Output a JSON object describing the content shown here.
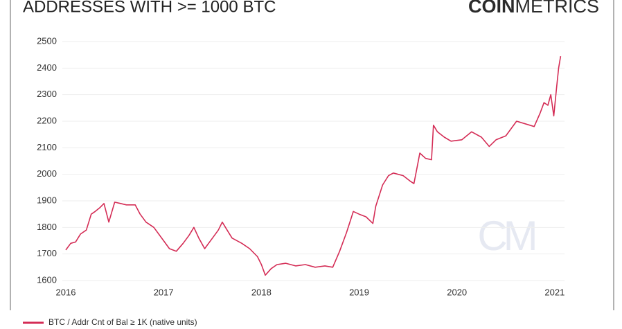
{
  "logo": {
    "bold": "COIN",
    "light": "METRICS"
  },
  "watermark": "CM",
  "chart_data": {
    "type": "line",
    "title": "ADDRESSES WITH >= 1000 BTC",
    "x": [
      2016.0,
      2016.05,
      2016.1,
      2016.15,
      2016.21,
      2016.26,
      2016.3,
      2016.35,
      2016.39,
      2016.44,
      2016.5,
      2016.56,
      2016.62,
      2016.71,
      2016.76,
      2016.82,
      2016.9,
      2017.0,
      2017.06,
      2017.13,
      2017.2,
      2017.26,
      2017.31,
      2017.36,
      2017.42,
      2017.5,
      2017.56,
      2017.6,
      2017.65,
      2017.7,
      2017.8,
      2017.88,
      2017.96,
      2018.0,
      2018.04,
      2018.1,
      2018.16,
      2018.25,
      2018.35,
      2018.45,
      2018.55,
      2018.65,
      2018.73,
      2018.8,
      2018.87,
      2018.94,
      2019.0,
      2019.07,
      2019.14,
      2019.17,
      2019.24,
      2019.3,
      2019.35,
      2019.45,
      2019.52,
      2019.56,
      2019.6,
      2019.62,
      2019.68,
      2019.74,
      2019.76,
      2019.8,
      2019.87,
      2019.94,
      2020.05,
      2020.15,
      2020.25,
      2020.33,
      2020.4,
      2020.5,
      2020.61,
      2020.7,
      2020.79,
      2020.85,
      2020.89,
      2020.93,
      2020.96,
      2020.99,
      2021.02,
      2021.04,
      2021.06
    ],
    "series": [
      {
        "name": "BTC / Addr Cnt of Bal ≥ 1K (native units)",
        "color": "#d42c55",
        "values": [
          1715,
          1740,
          1745,
          1775,
          1790,
          1850,
          1860,
          1875,
          1890,
          1820,
          1895,
          1890,
          1885,
          1885,
          1850,
          1820,
          1800,
          1750,
          1720,
          1710,
          1740,
          1770,
          1800,
          1760,
          1720,
          1760,
          1790,
          1820,
          1790,
          1760,
          1740,
          1720,
          1690,
          1660,
          1620,
          1645,
          1660,
          1665,
          1655,
          1660,
          1650,
          1655,
          1650,
          1710,
          1780,
          1860,
          1850,
          1840,
          1815,
          1880,
          1960,
          1995,
          2005,
          1995,
          1975,
          1965,
          2040,
          2080,
          2060,
          2055,
          2185,
          2160,
          2140,
          2125,
          2130,
          2160,
          2140,
          2105,
          2130,
          2145,
          2200,
          2190,
          2180,
          2230,
          2270,
          2260,
          2300,
          2220,
          2330,
          2400,
          2445
        ]
      }
    ],
    "xlim": [
      2016.0,
      2021.1
    ],
    "xticks": [
      2016,
      2017,
      2018,
      2019,
      2020,
      2021
    ],
    "ylim": [
      1600,
      2500
    ],
    "yticks": [
      1600,
      1700,
      1800,
      1900,
      2000,
      2100,
      2200,
      2300,
      2400,
      2500
    ],
    "grid": true
  }
}
